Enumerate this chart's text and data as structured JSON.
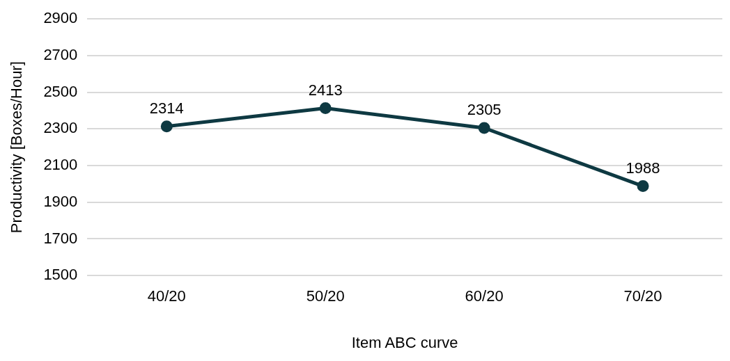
{
  "chart_data": {
    "type": "line",
    "xlabel": "Item ABC curve",
    "ylabel": "Productivity [Boxes/Hour]",
    "categories": [
      "40/20",
      "50/20",
      "60/20",
      "70/20"
    ],
    "series": [
      {
        "color": "#0e3942",
        "values": [
          2314,
          2413,
          2305,
          1988
        ]
      }
    ],
    "ylim": [
      1500,
      2900
    ],
    "yticks": [
      1500,
      1700,
      1900,
      2100,
      2300,
      2500,
      2700,
      2900
    ],
    "grid": "y",
    "marker": "circle",
    "line_style": "solid",
    "data_labels": true,
    "legend": false
  }
}
